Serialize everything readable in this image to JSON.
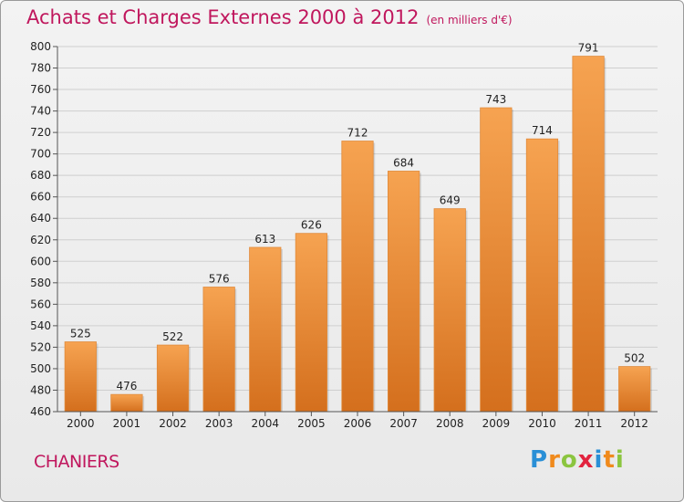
{
  "title": {
    "main": "Achats et Charges Externes 2000 à 2012",
    "unit": "(en milliers d'€)"
  },
  "place": "CHANIERS",
  "brand": {
    "text": "Proxiti",
    "letters": [
      {
        "ch": "P",
        "color": "#2a8fd6"
      },
      {
        "ch": "r",
        "color": "#f08a1c"
      },
      {
        "ch": "o",
        "color": "#8bc53f"
      },
      {
        "ch": "x",
        "color": "#e2233e"
      },
      {
        "ch": "i",
        "color": "#2a8fd6"
      },
      {
        "ch": "t",
        "color": "#f08a1c"
      },
      {
        "ch": "i",
        "color": "#8bc53f"
      }
    ]
  },
  "colors": {
    "bar_top": "#f6a351",
    "bar_bottom": "#d46f1d",
    "title": "#c0175d",
    "grid": "#cfcfcf"
  },
  "chart_data": {
    "type": "bar",
    "categories": [
      "2000",
      "2001",
      "2002",
      "2003",
      "2004",
      "2005",
      "2006",
      "2007",
      "2008",
      "2009",
      "2010",
      "2011",
      "2012"
    ],
    "values": [
      525,
      476,
      522,
      576,
      613,
      626,
      712,
      684,
      649,
      743,
      714,
      791,
      502
    ],
    "data_labels": [
      "525",
      "476",
      "522",
      "576",
      "613",
      "626",
      "712",
      "684",
      "649",
      "743",
      "714",
      "791",
      "502"
    ],
    "ylim": [
      460,
      800
    ],
    "yticks": [
      "460",
      "480",
      "500",
      "520",
      "540",
      "560",
      "580",
      "600",
      "620",
      "640",
      "660",
      "680",
      "700",
      "720",
      "740",
      "760",
      "780",
      "800"
    ],
    "grid": true,
    "legend": "none"
  }
}
